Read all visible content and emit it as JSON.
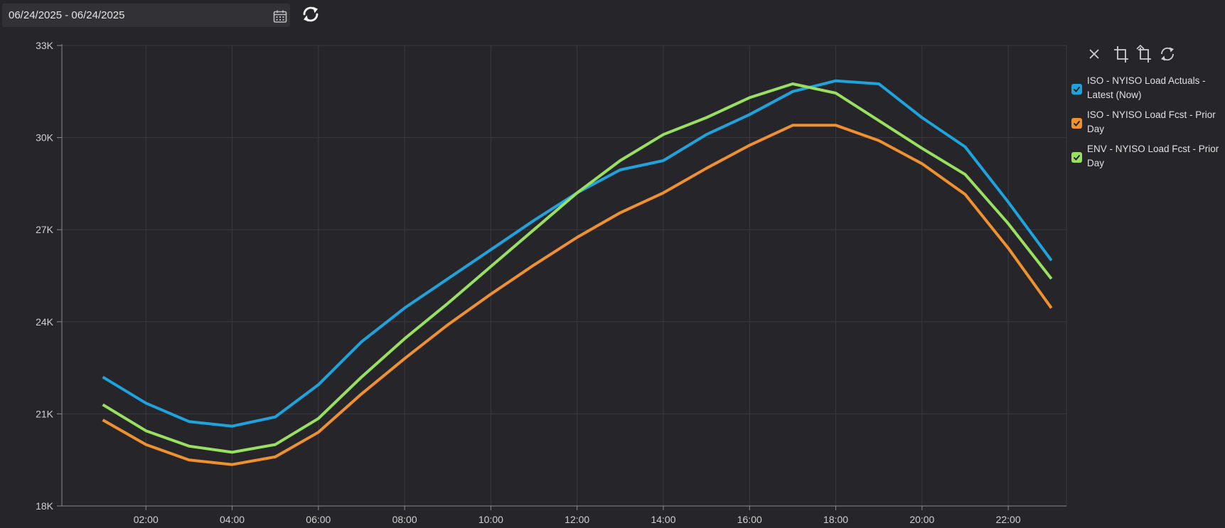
{
  "date_range": {
    "value": "06/24/2025 - 06/24/2025",
    "calendar_icon": "calendar-icon"
  },
  "refresh_icon": "refresh-icon",
  "toolbar": {
    "icons": [
      "close-icon",
      "crop-icon",
      "crop-rotate-icon",
      "reset-icon"
    ]
  },
  "chart_data": {
    "type": "line",
    "title": "",
    "xlabel": "",
    "ylabel": "",
    "x": [
      1,
      2,
      3,
      4,
      5,
      6,
      7,
      8,
      9,
      10,
      11,
      12,
      13,
      14,
      15,
      16,
      17,
      18,
      19,
      20,
      21,
      22,
      23
    ],
    "xlim": [
      0.05,
      23.35
    ],
    "x_ticks": [
      {
        "value": 2,
        "label": "02:00"
      },
      {
        "value": 4,
        "label": "04:00"
      },
      {
        "value": 6,
        "label": "06:00"
      },
      {
        "value": 8,
        "label": "08:00"
      },
      {
        "value": 10,
        "label": "10:00"
      },
      {
        "value": 12,
        "label": "12:00"
      },
      {
        "value": 14,
        "label": "14:00"
      },
      {
        "value": 16,
        "label": "16:00"
      },
      {
        "value": 18,
        "label": "18:00"
      },
      {
        "value": 20,
        "label": "20:00"
      },
      {
        "value": 22,
        "label": "22:00"
      }
    ],
    "ylim": [
      18000,
      33000
    ],
    "y_ticks": [
      {
        "value": 18000,
        "label": "18K"
      },
      {
        "value": 21000,
        "label": "21K"
      },
      {
        "value": 24000,
        "label": "24K"
      },
      {
        "value": 27000,
        "label": "27K"
      },
      {
        "value": 30000,
        "label": "30K"
      },
      {
        "value": 33000,
        "label": "33K"
      }
    ],
    "grid": true,
    "legend_position": "top-right",
    "series": [
      {
        "name": "ISO - NYISO Load Actuals - Latest (Now)",
        "color": "#1fa3dc",
        "checked": true,
        "values": [
          22200,
          21350,
          20750,
          20600,
          20900,
          21950,
          23350,
          24450,
          25400,
          26350,
          27300,
          28200,
          28950,
          29250,
          30100,
          30750,
          31500,
          31850,
          31750,
          30650,
          29700,
          27900,
          26000
        ]
      },
      {
        "name": "ISO - NYISO Load Fcst - Prior Day",
        "color": "#f0912f",
        "checked": true,
        "values": [
          20800,
          20000,
          19500,
          19350,
          19600,
          20400,
          21650,
          22800,
          23900,
          24900,
          25850,
          26750,
          27550,
          28200,
          29000,
          29750,
          30400,
          30400,
          29900,
          29150,
          28150,
          26400,
          24450
        ]
      },
      {
        "name": "ENV - NYISO Load Fcst - Prior Day",
        "color": "#99e060",
        "checked": true,
        "values": [
          21300,
          20450,
          19950,
          19750,
          20000,
          20850,
          22200,
          23450,
          24600,
          25800,
          27000,
          28200,
          29250,
          30100,
          30650,
          31300,
          31750,
          31450,
          30550,
          29650,
          28800,
          27200,
          25400
        ]
      }
    ]
  }
}
